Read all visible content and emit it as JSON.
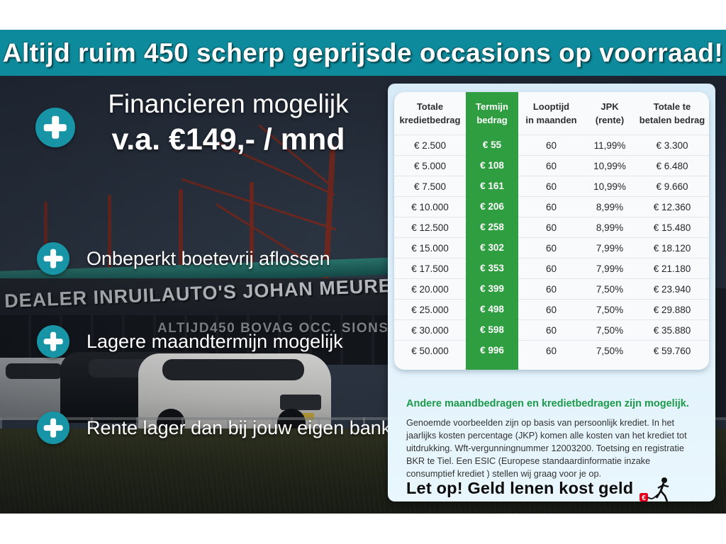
{
  "banner": {
    "text": "Altijd ruim 450 scherp geprijsde occasions op voorraad!"
  },
  "promo": {
    "headline": "Financieren mogelijk",
    "price_line": "v.a. €149,- / mnd",
    "bullets": [
      "Onbeperkt boetevrij aflossen",
      "Lagere maandtermijn mogelijk",
      "Rente lager dan bij jouw eigen bank"
    ]
  },
  "photo": {
    "sign_main": "DEALER INRUILAUTO'S JOHAN MEURE",
    "sign_sub": "ALTIJD450 BOVAG OCC. SIONS"
  },
  "finance_table": {
    "headers": [
      [
        "Totale",
        "kredietbedrag"
      ],
      [
        "Termijn",
        "bedrag"
      ],
      [
        "Looptijd",
        "in maanden"
      ],
      [
        "JPK",
        "(rente)"
      ],
      [
        "Totale te",
        "betalen bedrag"
      ]
    ],
    "rows": [
      [
        "€ 2.500",
        "€ 55",
        "60",
        "11,99%",
        "€ 3.300"
      ],
      [
        "€ 5.000",
        "€ 108",
        "60",
        "10,99%",
        "€ 6.480"
      ],
      [
        "€ 7.500",
        "€ 161",
        "60",
        "10,99%",
        "€ 9.660"
      ],
      [
        "€ 10.000",
        "€ 206",
        "60",
        "8,99%",
        "€ 12.360"
      ],
      [
        "€ 12.500",
        "€ 258",
        "60",
        "8,99%",
        "€ 15.480"
      ],
      [
        "€ 15.000",
        "€ 302",
        "60",
        "7,99%",
        "€ 18.120"
      ],
      [
        "€ 17.500",
        "€ 353",
        "60",
        "7,99%",
        "€ 21.180"
      ],
      [
        "€ 20.000",
        "€ 399",
        "60",
        "7,50%",
        "€ 23.940"
      ],
      [
        "€ 25.000",
        "€ 498",
        "60",
        "7,50%",
        "€ 29.880"
      ],
      [
        "€ 30.000",
        "€ 598",
        "60",
        "7,50%",
        "€ 35.880"
      ],
      [
        "€ 50.000",
        "€ 996",
        "60",
        "7,50%",
        "€ 59.760"
      ]
    ]
  },
  "disclaimer": {
    "heading": "Andere maandbedragen en kredietbedragen zijn mogelijk.",
    "body": "Genoemde voorbeelden zijn op basis van persoonlijk krediet. In het jaarlijks kosten percentage (JKP) komen alle kosten van het krediet tot uitdrukking. Wft-vergunningnummer 12003200. Toetsing en registratie BKR te Tiel. Een ESIC (Europese standaardinformatie inzake consumptief krediet ) stellen wij graag voor je op.",
    "warning": "Let op! Geld lenen kost geld"
  },
  "colors": {
    "banner_teal": "#0d8b9c",
    "plus_teal": "#1795a6",
    "table_green": "#2f9e41",
    "heading_green": "#1a9b49",
    "panel_blue": "#d7ebf8",
    "warning_red": "#e2001a"
  }
}
